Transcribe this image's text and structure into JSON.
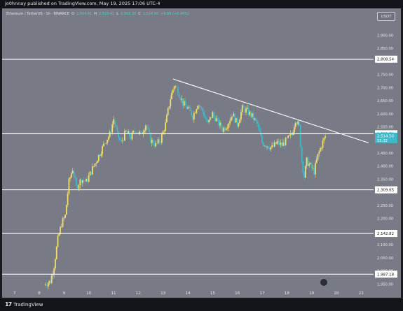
{
  "header": {
    "publisher_text": "jo0hnnay published on TradingView.com, May 19, 2025 17:06 UTC-4"
  },
  "legend": {
    "symbol": "Ethereum / TetherUS · 1h · BINANCE",
    "open_label": "O",
    "open": "2,504.61",
    "high_label": "H",
    "high": "2,519.41",
    "low_label": "L",
    "low": "2,502.32",
    "close_label": "C",
    "close": "2,514.50",
    "change": "+9.89 (+0.40%)"
  },
  "currency_button": "USDT",
  "footer": {
    "logo_text": "TradingView"
  },
  "colors": {
    "background": "#787b86",
    "candle_up": "#f1de6b",
    "candle_down": "#3fb8c8",
    "level_line": "#ffffff",
    "trendline": "#ffffff",
    "price_label_bg": "#3fb8c8"
  },
  "chart_data": {
    "type": "candlestick",
    "symbol": "ETHUSDT",
    "timeframe": "1h",
    "x_ticks": [
      "7",
      "8",
      "9",
      "10",
      "11",
      "12",
      "13",
      "14",
      "15",
      "16",
      "17",
      "18",
      "19",
      "20",
      "21"
    ],
    "y_ticks": [
      1950,
      2000,
      2050,
      2100,
      2150,
      2200,
      2250,
      2300,
      2350,
      2400,
      2450,
      2500,
      2550,
      2600,
      2650,
      2700,
      2750,
      2800,
      2850,
      2900
    ],
    "y_tick_labels": [
      "1,950.00",
      "2,000.00",
      "2,050.00",
      "2,100.00",
      "2,150.00",
      "2,200.00",
      "2,250.00",
      "2,300.00",
      "2,350.00",
      "2,400.00",
      "2,450.00",
      "2,500.00",
      "2,550.00",
      "2,600.00",
      "2,650.00",
      "2,700.00",
      "2,750.00",
      "2,800.00",
      "2,850.00",
      "2,900.00"
    ],
    "ylim": [
      1940,
      2960
    ],
    "xlim": [
      6.5,
      21.5
    ],
    "horizontal_levels": [
      {
        "value": 2808.54,
        "label": "2,808.54"
      },
      {
        "value": 2523.79,
        "label": "2,523.79"
      },
      {
        "value": 2309.65,
        "label": "2,309.65"
      },
      {
        "value": 2142.82,
        "label": "2,142.82"
      },
      {
        "value": 1987.18,
        "label": "1,987.18"
      }
    ],
    "current_price": {
      "value": 2514.5,
      "label": "2,514.50",
      "countdown": "53:32"
    },
    "trendline": {
      "start": {
        "x": 13.4,
        "y": 2733
      },
      "end": {
        "x": 21.3,
        "y": 2489
      }
    },
    "price_path": [
      {
        "x": 8.2,
        "y": 1945
      },
      {
        "x": 8.45,
        "y": 1960
      },
      {
        "x": 8.6,
        "y": 2020
      },
      {
        "x": 8.75,
        "y": 2120
      },
      {
        "x": 8.9,
        "y": 2180
      },
      {
        "x": 9.05,
        "y": 2210
      },
      {
        "x": 9.2,
        "y": 2340
      },
      {
        "x": 9.35,
        "y": 2390
      },
      {
        "x": 9.5,
        "y": 2320
      },
      {
        "x": 9.7,
        "y": 2350
      },
      {
        "x": 9.9,
        "y": 2340
      },
      {
        "x": 10.1,
        "y": 2380
      },
      {
        "x": 10.3,
        "y": 2420
      },
      {
        "x": 10.5,
        "y": 2460
      },
      {
        "x": 10.7,
        "y": 2500
      },
      {
        "x": 10.85,
        "y": 2520
      },
      {
        "x": 11.0,
        "y": 2580
      },
      {
        "x": 11.15,
        "y": 2520
      },
      {
        "x": 11.3,
        "y": 2490
      },
      {
        "x": 11.5,
        "y": 2530
      },
      {
        "x": 11.7,
        "y": 2510
      },
      {
        "x": 11.9,
        "y": 2540
      },
      {
        "x": 12.1,
        "y": 2520
      },
      {
        "x": 12.3,
        "y": 2560
      },
      {
        "x": 12.5,
        "y": 2500
      },
      {
        "x": 12.7,
        "y": 2480
      },
      {
        "x": 12.9,
        "y": 2500
      },
      {
        "x": 13.1,
        "y": 2560
      },
      {
        "x": 13.3,
        "y": 2660
      },
      {
        "x": 13.45,
        "y": 2710
      },
      {
        "x": 13.6,
        "y": 2690
      },
      {
        "x": 13.8,
        "y": 2640
      },
      {
        "x": 14.0,
        "y": 2620
      },
      {
        "x": 14.2,
        "y": 2590
      },
      {
        "x": 14.4,
        "y": 2640
      },
      {
        "x": 14.6,
        "y": 2610
      },
      {
        "x": 14.8,
        "y": 2560
      },
      {
        "x": 15.0,
        "y": 2600
      },
      {
        "x": 15.2,
        "y": 2570
      },
      {
        "x": 15.4,
        "y": 2540
      },
      {
        "x": 15.6,
        "y": 2560
      },
      {
        "x": 15.8,
        "y": 2600
      },
      {
        "x": 16.0,
        "y": 2560
      },
      {
        "x": 16.2,
        "y": 2620
      },
      {
        "x": 16.4,
        "y": 2610
      },
      {
        "x": 16.6,
        "y": 2590
      },
      {
        "x": 16.8,
        "y": 2560
      },
      {
        "x": 17.0,
        "y": 2490
      },
      {
        "x": 17.2,
        "y": 2480
      },
      {
        "x": 17.4,
        "y": 2470
      },
      {
        "x": 17.6,
        "y": 2490
      },
      {
        "x": 17.8,
        "y": 2480
      },
      {
        "x": 18.0,
        "y": 2500
      },
      {
        "x": 18.2,
        "y": 2520
      },
      {
        "x": 18.35,
        "y": 2580
      },
      {
        "x": 18.5,
        "y": 2550
      },
      {
        "x": 18.6,
        "y": 2420
      },
      {
        "x": 18.7,
        "y": 2360
      },
      {
        "x": 18.8,
        "y": 2420
      },
      {
        "x": 18.95,
        "y": 2400
      },
      {
        "x": 19.1,
        "y": 2380
      },
      {
        "x": 19.25,
        "y": 2440
      },
      {
        "x": 19.4,
        "y": 2480
      },
      {
        "x": 19.55,
        "y": 2514.5
      }
    ]
  }
}
